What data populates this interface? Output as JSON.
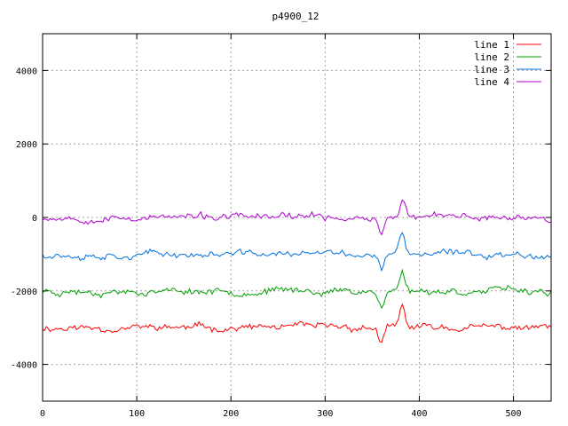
{
  "chart_data": {
    "type": "line",
    "title": "p4900_12",
    "xlabel": "",
    "ylabel": "",
    "xlim": [
      0,
      540
    ],
    "ylim": [
      -5000,
      5000
    ],
    "x_ticks": [
      0,
      100,
      200,
      300,
      400,
      500
    ],
    "y_ticks": [
      -4000,
      -2000,
      0,
      2000,
      4000
    ],
    "grid": true,
    "legend_position": "top-right",
    "series": [
      {
        "name": "line 1",
        "color": "#ff0000",
        "offset": -3000,
        "seed": 11
      },
      {
        "name": "line 2",
        "color": "#00a000",
        "offset": -2000,
        "seed": 23
      },
      {
        "name": "line 3",
        "color": "#0070e0",
        "offset": -1000,
        "seed": 37
      },
      {
        "name": "line 4",
        "color": "#b000d0",
        "offset": 0,
        "seed": 53
      }
    ],
    "features": [
      {
        "x": 360,
        "delta": -450
      },
      {
        "x": 382,
        "delta": 550
      }
    ]
  }
}
